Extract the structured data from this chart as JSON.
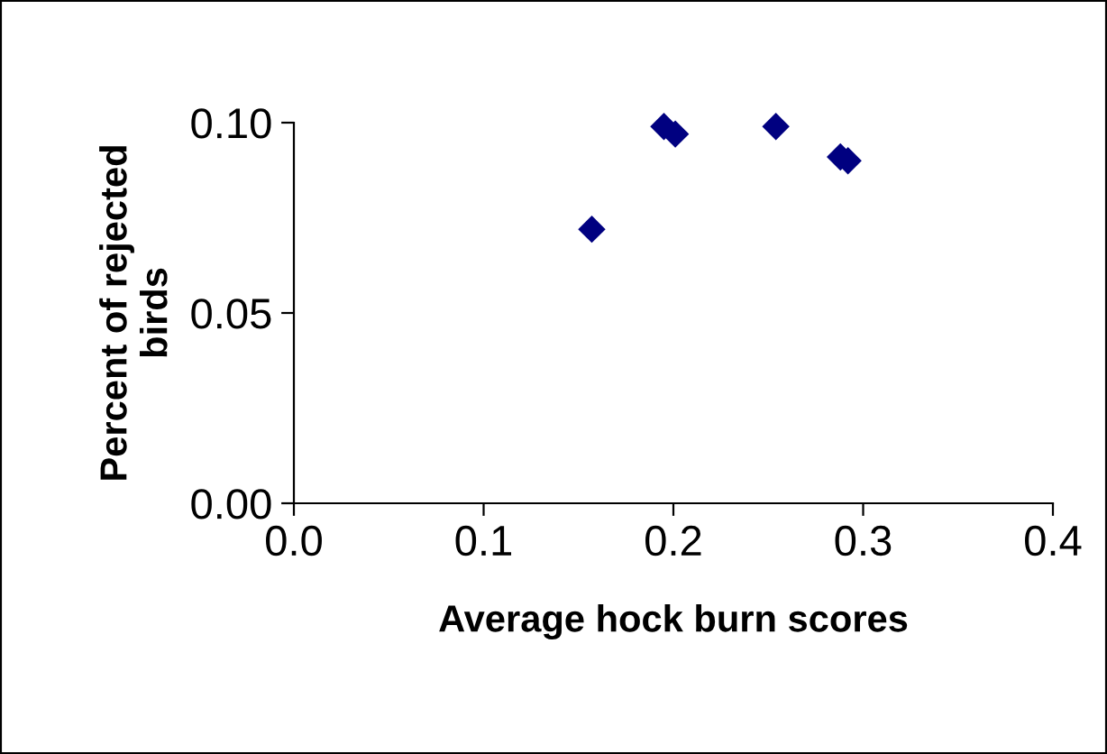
{
  "chart_data": {
    "type": "scatter",
    "xlabel": "Average hock burn scores",
    "ylabel": "Percent of rejected\nbirds",
    "x": [
      0.157,
      0.195,
      0.201,
      0.254,
      0.288,
      0.292
    ],
    "values": [
      0.072,
      0.099,
      0.097,
      0.099,
      0.091,
      0.09
    ],
    "color": "#000080",
    "marker": "diamond",
    "xlim": [
      0.0,
      0.4
    ],
    "xticks": [
      {
        "value": 0.0,
        "label": "0.0"
      },
      0.1,
      0.2,
      0.3,
      0.4
    ],
    "ylim": [
      0.0,
      0.1
    ],
    "yticks": [
      {
        "value": 0.0,
        "label": "0.00"
      },
      0.05,
      {
        "value": 0.1,
        "label": "0.10"
      }
    ],
    "grid": false,
    "legend": false
  }
}
